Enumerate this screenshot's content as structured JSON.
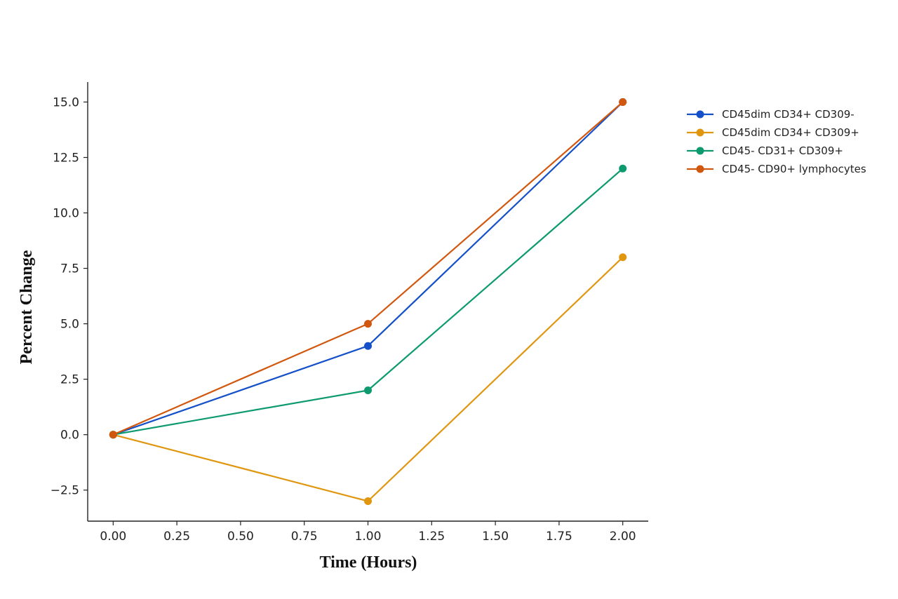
{
  "chart_data": {
    "type": "line",
    "title": "",
    "xlabel": "Time (Hours)",
    "ylabel": "Percent Change",
    "xlim": [
      -0.1,
      2.1
    ],
    "ylim": [
      -3.9,
      15.9
    ],
    "xticks": [
      0,
      0.25,
      0.5,
      0.75,
      1.0,
      1.25,
      1.5,
      1.75,
      2.0
    ],
    "xtick_labels": [
      "0.00",
      "0.25",
      "0.50",
      "0.75",
      "1.00",
      "1.25",
      "1.50",
      "1.75",
      "2.00"
    ],
    "yticks": [
      -2.5,
      0,
      2.5,
      5.0,
      7.5,
      10.0,
      12.5,
      15.0
    ],
    "ytick_labels": [
      "−2.5",
      "0.0",
      "2.5",
      "5.0",
      "7.5",
      "10.0",
      "12.5",
      "15.0"
    ],
    "grid": false,
    "legend_position": "right",
    "x": [
      0,
      1,
      2
    ],
    "series": [
      {
        "name": "CD45dim CD34+ CD309-",
        "values": [
          0,
          4,
          15
        ],
        "color": "#1450c8"
      },
      {
        "name": "CD45dim CD34+ CD309+",
        "values": [
          0,
          -3,
          8
        ],
        "color": "#e0960f"
      },
      {
        "name": "CD45- CD31+ CD309+",
        "values": [
          0,
          2,
          12
        ],
        "color": "#0c9a6e"
      },
      {
        "name": "CD45- CD90+ lymphocytes",
        "values": [
          0,
          5,
          15
        ],
        "color": "#d2570e"
      }
    ]
  }
}
